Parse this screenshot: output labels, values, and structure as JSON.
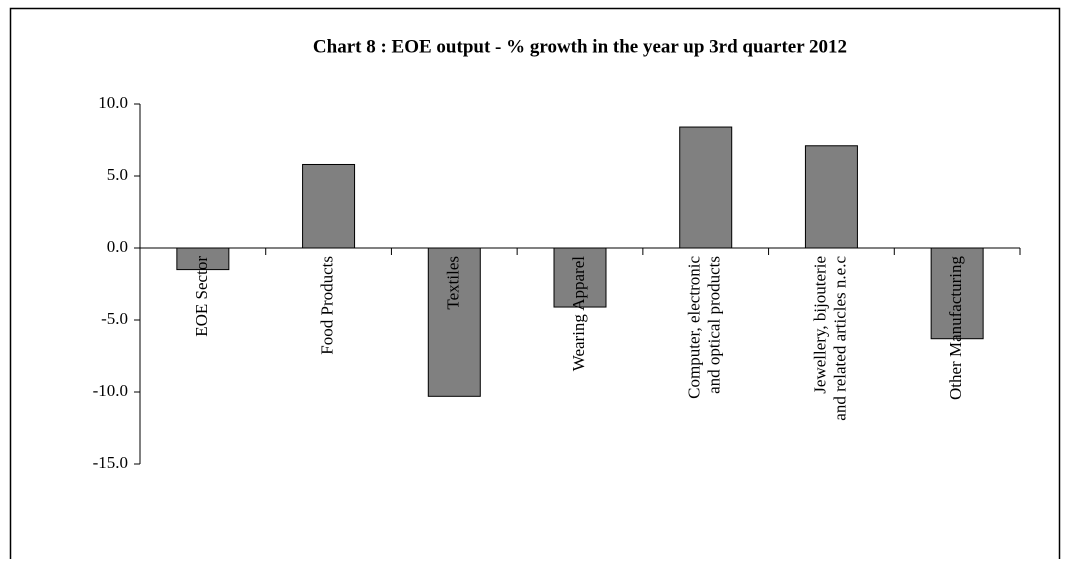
{
  "chart_data": {
    "type": "bar",
    "title": "Chart 8 : EOE output - % growth in the year up 3rd quarter 2012",
    "categories": [
      "EOE Sector",
      "Food Products",
      "Textiles",
      "Wearing Apparel",
      "Computer, electronic\nand optical products",
      "Jewellery, bijouterie\nand related articles n.e.c",
      "Other Manufacturing"
    ],
    "values": [
      -1.5,
      5.8,
      -10.3,
      -4.1,
      8.4,
      7.1,
      -6.3
    ],
    "color": "#808080",
    "ylim": [
      -15,
      10
    ],
    "yticks": [
      {
        "value": 10,
        "label": "10.0"
      },
      {
        "value": 5,
        "label": "5.0"
      },
      {
        "value": 0,
        "label": "0.0"
      },
      {
        "value": -5,
        "label": "-5.0"
      },
      {
        "value": -10,
        "label": "-10.0"
      },
      {
        "value": -15,
        "label": "-15.0"
      }
    ],
    "grid": false
  }
}
